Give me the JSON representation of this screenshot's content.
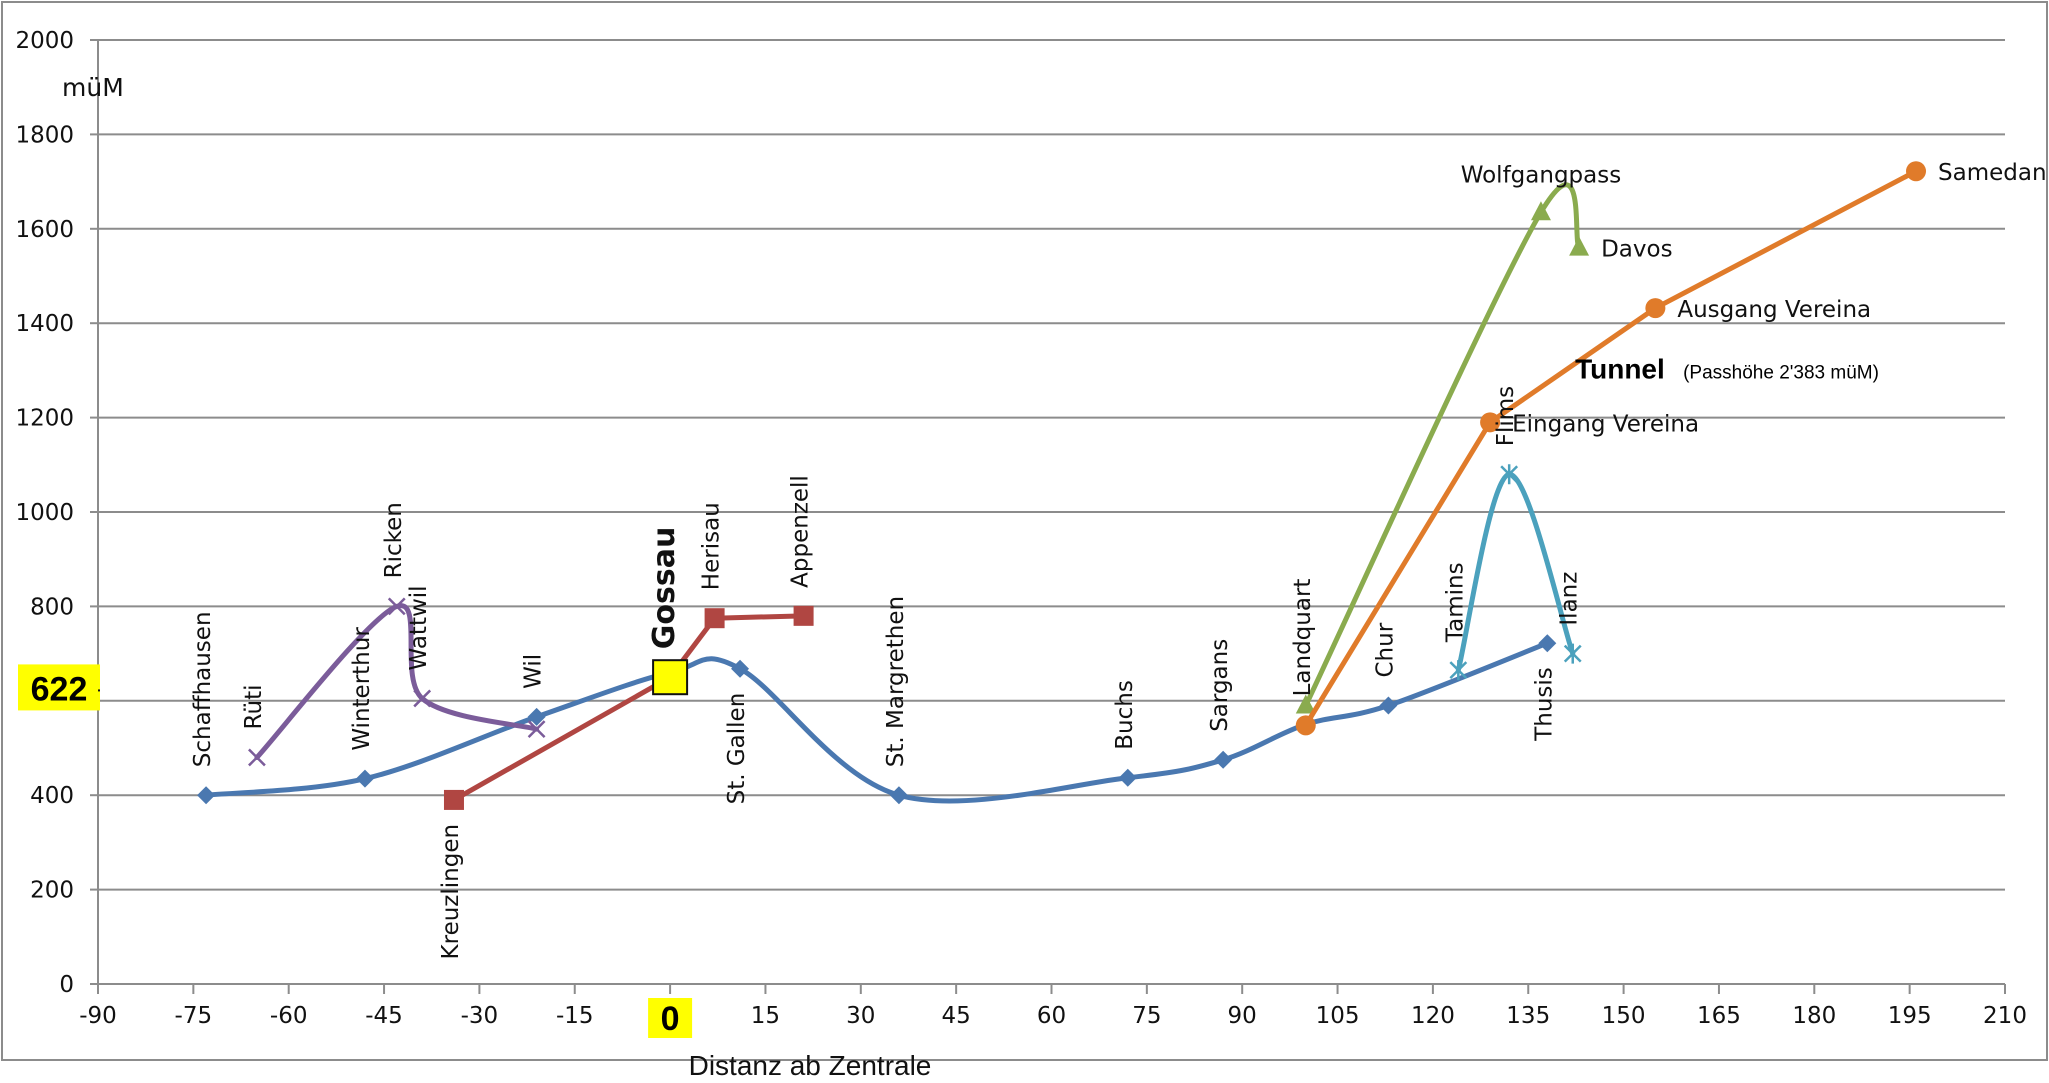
{
  "chart_data": {
    "type": "line",
    "title": "",
    "xlabel": "Distanz ab Zentrale",
    "ylabel": "müM",
    "xlim": [
      -90,
      210
    ],
    "ylim": [
      0,
      2000
    ],
    "xticks": [
      -90,
      -75,
      -60,
      -45,
      -30,
      -15,
      0,
      15,
      30,
      45,
      60,
      75,
      90,
      105,
      120,
      135,
      150,
      165,
      180,
      195,
      210
    ],
    "yticks": [
      0,
      200,
      400,
      600,
      800,
      1000,
      1200,
      1400,
      1600,
      1800,
      2000
    ],
    "grid": true,
    "legend": "none",
    "highlight": {
      "x_label": "0",
      "y_label": "622",
      "y_value": 622
    },
    "series": [
      {
        "color": "#4a78b0",
        "marker": "diamond",
        "smooth": true,
        "points": [
          {
            "x": -73,
            "y": 400,
            "label": "Schaffhausen",
            "rotate": true
          },
          {
            "x": -48,
            "y": 435,
            "label": "Winterthur",
            "rotate": true
          },
          {
            "x": -21,
            "y": 566,
            "label": "Wil",
            "rotate": true
          },
          {
            "x": 0,
            "y": 660,
            "label": "",
            "rotate": true
          },
          {
            "x": 11,
            "y": 668,
            "label": "St. Gallen",
            "rotate": true,
            "below": true
          },
          {
            "x": 36,
            "y": 400,
            "label": "St. Margrethen",
            "rotate": true
          },
          {
            "x": 72,
            "y": 437,
            "label": "Buchs",
            "rotate": true
          },
          {
            "x": 87,
            "y": 475,
            "label": "Sargans",
            "rotate": true
          },
          {
            "x": 100,
            "y": 550,
            "label": "Landquart",
            "rotate": true
          },
          {
            "x": 113,
            "y": 590,
            "label": "Chur",
            "rotate": true
          },
          {
            "x": 138,
            "y": 722,
            "label": "Thusis",
            "rotate": true,
            "below": true
          }
        ]
      },
      {
        "color": "#b04642",
        "marker": "square",
        "smooth": false,
        "points": [
          {
            "x": -34,
            "y": 390,
            "label": "Kreuzlingen",
            "rotate": true,
            "below": true
          },
          {
            "x": 0,
            "y": 650,
            "label": "Gossau",
            "rotate": true,
            "bold": true
          },
          {
            "x": 7,
            "y": 775,
            "label": "Herisau",
            "rotate": true
          },
          {
            "x": 21,
            "y": 780,
            "label": "Appenzell",
            "rotate": true
          }
        ]
      },
      {
        "color": "#7b5c9a",
        "marker": "x",
        "smooth": true,
        "points": [
          {
            "x": -65,
            "y": 480,
            "label": "Rüti",
            "rotate": true
          },
          {
            "x": -43,
            "y": 800,
            "label": "Ricken",
            "rotate": true
          },
          {
            "x": -39,
            "y": 605,
            "label": "Wattwil",
            "rotate": true
          },
          {
            "x": -21,
            "y": 540,
            "label": "",
            "rotate": true
          }
        ]
      },
      {
        "color": "#8aab4e",
        "marker": "triangle",
        "smooth": true,
        "points": [
          {
            "x": 100,
            "y": 590,
            "label": "",
            "rotate": false
          },
          {
            "x": 137,
            "y": 1635,
            "label": "Wolfgangpass",
            "rotate": false
          },
          {
            "x": 143,
            "y": 1560,
            "label": "Davos",
            "rotate": false
          }
        ]
      },
      {
        "color": "#e07b2a",
        "marker": "circle",
        "smooth": false,
        "points": [
          {
            "x": 100,
            "y": 548,
            "label": "",
            "rotate": false
          },
          {
            "x": 129,
            "y": 1190,
            "label": "Eingang Vereina",
            "rotate": false
          },
          {
            "x": 155,
            "y": 1432,
            "label": "Ausgang Vereina",
            "rotate": false
          },
          {
            "x": 196,
            "y": 1722,
            "label": "Samedan",
            "rotate": false
          }
        ]
      },
      {
        "color": "#4ba1bd",
        "marker": "asterisk",
        "smooth": true,
        "points": [
          {
            "x": 124,
            "y": 665,
            "label": "Tamins",
            "rotate": true
          },
          {
            "x": 132,
            "y": 1080,
            "label": "Flims",
            "rotate": true
          },
          {
            "x": 142,
            "y": 700,
            "label": "Ilanz",
            "rotate": true
          }
        ]
      }
    ],
    "annotations": [
      {
        "x": 143,
        "y": 1300,
        "text": "Tunnel",
        "sub": "(Passhöhe 2'383 müM)"
      }
    ]
  }
}
